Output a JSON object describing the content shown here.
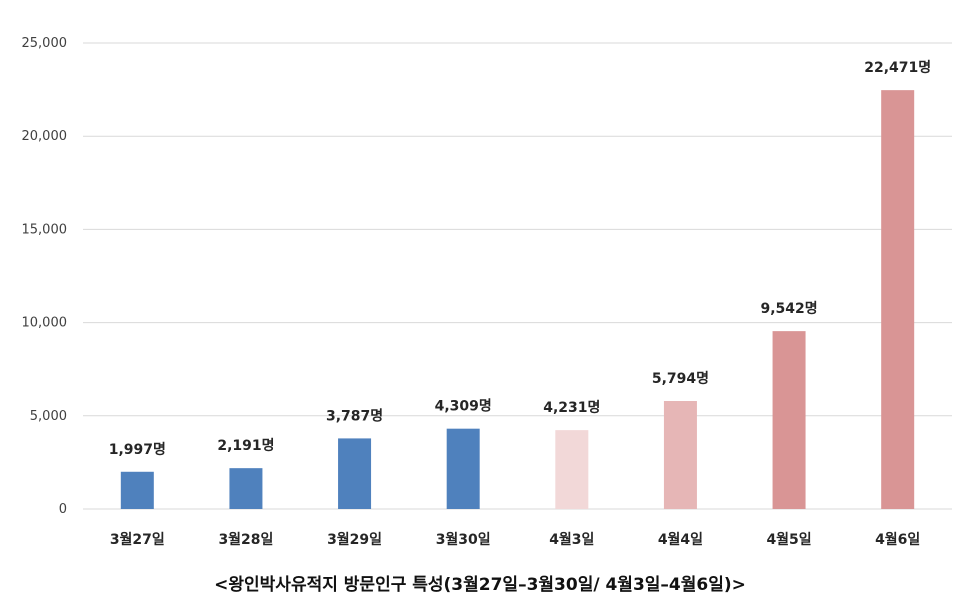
{
  "caption": "<왕인박사유적지 방문인구 특성(3월27일–3월30일/ 4월3일–4월6일)>",
  "chart_data": {
    "type": "bar",
    "categories": [
      "3월27일",
      "3월28일",
      "3월29일",
      "3월30일",
      "4월3일",
      "4월4일",
      "4월5일",
      "4월6일"
    ],
    "values": [
      1997,
      2191,
      3787,
      4309,
      4231,
      5794,
      9542,
      22471
    ],
    "data_labels": [
      "1,997명",
      "2,191명",
      "3,787명",
      "4,309명",
      "4,231명",
      "5,794명",
      "9,542명",
      "22,471명"
    ],
    "bar_colors": [
      "#4f81bd",
      "#4f81bd",
      "#4f81bd",
      "#4f81bd",
      "#f2d8d8",
      "#e6b6b6",
      "#d99595",
      "#d99595"
    ],
    "yticks": [
      "0",
      "5,000",
      "10,000",
      "15,000",
      "20,000",
      "25,000"
    ],
    "ytick_values": [
      0,
      5000,
      10000,
      15000,
      20000,
      25000
    ],
    "ylim": [
      0,
      25000
    ],
    "grid": true,
    "legend": "none",
    "title": "",
    "xlabel": "",
    "ylabel": ""
  }
}
